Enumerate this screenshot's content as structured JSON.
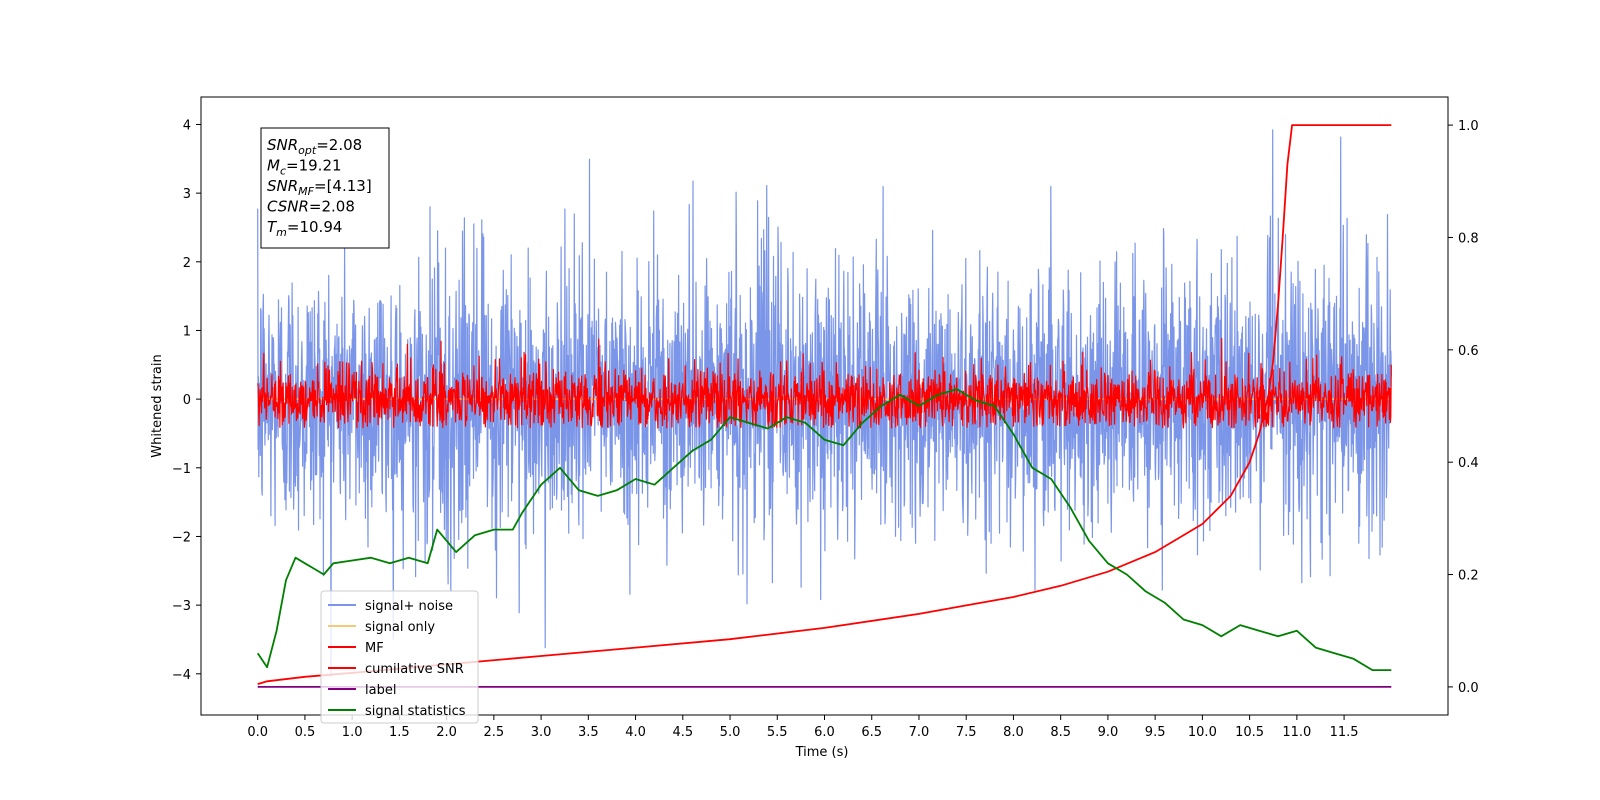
{
  "chart_data": {
    "type": "line",
    "xlabel": "Time (s)",
    "ylabel": "Whitened strain",
    "title": "",
    "xlim": [
      -0.6,
      12.6
    ],
    "ylim": [
      -4.6,
      4.4
    ],
    "ylim_right": [
      -0.05,
      1.05
    ],
    "x_ticks": [
      0.0,
      0.5,
      1.0,
      1.5,
      2.0,
      2.5,
      3.0,
      3.5,
      4.0,
      4.5,
      5.0,
      5.5,
      6.0,
      6.5,
      7.0,
      7.5,
      8.0,
      8.5,
      9.0,
      9.5,
      10.0,
      10.5,
      11.0,
      11.5
    ],
    "x_tick_labels": [
      "0.0",
      "0.5",
      "1.0",
      "1.5",
      "2.0",
      "2.5",
      "3.0",
      "3.5",
      "4.0",
      "4.5",
      "5.0",
      "5.5",
      "6.0",
      "6.5",
      "7.0",
      "7.5",
      "8.0",
      "8.5",
      "9.0",
      "9.5",
      "10.0",
      "10.5",
      "11.0",
      "11.5"
    ],
    "y_ticks": [
      -4,
      -3,
      -2,
      -1,
      0,
      1,
      2,
      3,
      4
    ],
    "y_tick_labels": [
      "−4",
      "−3",
      "−2",
      "−1",
      "0",
      "1",
      "2",
      "3",
      "4"
    ],
    "y_ticks_right": [
      0.0,
      0.2,
      0.4,
      0.6,
      0.8,
      1.0
    ],
    "y_tick_labels_right": [
      "0.0",
      "0.2",
      "0.4",
      "0.6",
      "0.8",
      "1.0"
    ],
    "grid": false,
    "legend_position": "lower-left",
    "annotation_box": {
      "position": "top-left",
      "lines": [
        {
          "sym": "SNR",
          "sub": "opt",
          "rest": "=2.08"
        },
        {
          "sym": "M",
          "sub": "c",
          "rest": "=19.21"
        },
        {
          "sym": "SNR",
          "sub": "MF",
          "rest": "=[4.13]"
        },
        {
          "sym": "CSNR",
          "sub": "",
          "rest": "=2.08"
        },
        {
          "sym": "T",
          "sub": "m",
          "rest": "=10.94"
        }
      ]
    },
    "series": [
      {
        "name": "signal+ noise",
        "color": "#7b96e8",
        "axis": "left",
        "kind": "noise",
        "x_range": [
          0.0,
          12.0
        ],
        "sigma": 1.0,
        "y_min": -4.15,
        "y_max": 4.05
      },
      {
        "name": "signal only",
        "color": "#f5c97a",
        "axis": "left",
        "kind": "line",
        "x": [
          0.0,
          12.0
        ],
        "y": [
          0.0,
          0.0
        ]
      },
      {
        "name": "MF",
        "color": "#ff0000",
        "axis": "left",
        "kind": "noise",
        "x_range": [
          0.0,
          12.0
        ],
        "sigma": 0.25,
        "y_min": -0.42,
        "y_max": 1.0
      },
      {
        "name": "cumilative SNR",
        "color": "#ff0000",
        "axis": "right",
        "kind": "line",
        "x": [
          0.0,
          0.1,
          0.5,
          1.0,
          2.0,
          3.0,
          4.0,
          5.0,
          6.0,
          7.0,
          7.5,
          8.0,
          8.5,
          9.0,
          9.5,
          10.0,
          10.3,
          10.5,
          10.6,
          10.7,
          10.75,
          10.8,
          10.85,
          10.9,
          10.95,
          11.0,
          12.0
        ],
        "y": [
          0.005,
          0.01,
          0.018,
          0.025,
          0.04,
          0.055,
          0.07,
          0.085,
          0.105,
          0.13,
          0.145,
          0.16,
          0.18,
          0.205,
          0.24,
          0.29,
          0.34,
          0.4,
          0.45,
          0.52,
          0.58,
          0.68,
          0.8,
          0.93,
          1.0,
          1.0,
          1.0
        ]
      },
      {
        "name": "label",
        "color": "#800080",
        "axis": "right",
        "kind": "line",
        "x": [
          0.0,
          12.0
        ],
        "y": [
          0.0,
          0.0
        ]
      },
      {
        "name": "signal statistics",
        "color": "#008000",
        "axis": "right",
        "kind": "line",
        "x": [
          0.0,
          0.1,
          0.2,
          0.3,
          0.4,
          0.5,
          0.6,
          0.7,
          0.8,
          1.0,
          1.2,
          1.4,
          1.6,
          1.8,
          1.9,
          2.1,
          2.3,
          2.5,
          2.7,
          2.8,
          3.0,
          3.2,
          3.4,
          3.6,
          3.8,
          4.0,
          4.2,
          4.4,
          4.6,
          4.8,
          5.0,
          5.2,
          5.4,
          5.6,
          5.8,
          6.0,
          6.2,
          6.4,
          6.6,
          6.8,
          7.0,
          7.2,
          7.4,
          7.6,
          7.8,
          8.0,
          8.2,
          8.4,
          8.6,
          8.8,
          9.0,
          9.2,
          9.4,
          9.6,
          9.8,
          10.0,
          10.2,
          10.4,
          10.6,
          10.8,
          11.0,
          11.2,
          11.4,
          11.6,
          11.8,
          12.0
        ],
        "y": [
          0.06,
          0.035,
          0.1,
          0.19,
          0.23,
          0.22,
          0.21,
          0.2,
          0.22,
          0.225,
          0.23,
          0.22,
          0.23,
          0.22,
          0.28,
          0.24,
          0.27,
          0.28,
          0.28,
          0.31,
          0.36,
          0.39,
          0.35,
          0.34,
          0.35,
          0.37,
          0.36,
          0.39,
          0.42,
          0.44,
          0.48,
          0.47,
          0.46,
          0.48,
          0.47,
          0.44,
          0.43,
          0.47,
          0.5,
          0.52,
          0.5,
          0.52,
          0.53,
          0.51,
          0.5,
          0.45,
          0.39,
          0.37,
          0.32,
          0.26,
          0.22,
          0.2,
          0.17,
          0.15,
          0.12,
          0.11,
          0.09,
          0.11,
          0.1,
          0.09,
          0.1,
          0.07,
          0.06,
          0.05,
          0.03,
          0.03
        ]
      }
    ]
  }
}
